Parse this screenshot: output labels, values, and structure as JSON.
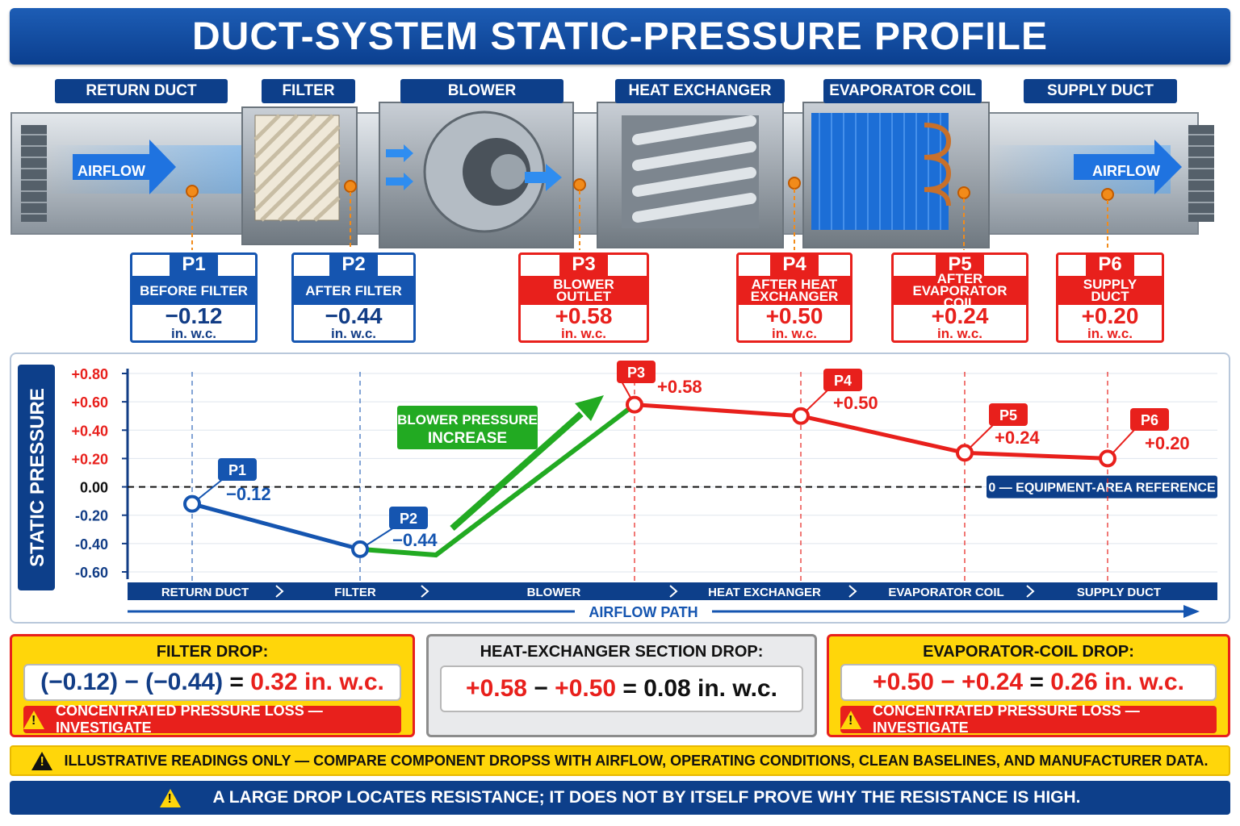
{
  "title": "DUCT-SYSTEM STATIC-PRESSURE PROFILE",
  "components": [
    "RETURN DUCT",
    "FILTER",
    "BLOWER",
    "HEAT EXCHANGER",
    "EVAPORATOR COIL",
    "SUPPLY DUCT"
  ],
  "airflow_labels": [
    "AIRFLOW",
    "AIRFLOW"
  ],
  "points": [
    {
      "id": "P1",
      "label": "BEFORE FILTER",
      "value": "−0.12",
      "unit": "in. w.c.",
      "style": "blue"
    },
    {
      "id": "P2",
      "label": "AFTER FILTER",
      "value": "−0.44",
      "unit": "in. w.c.",
      "style": "blue"
    },
    {
      "id": "P3",
      "label": "BLOWER OUTLET",
      "value": "+0.58",
      "unit": "in. w.c.",
      "style": "red"
    },
    {
      "id": "P4",
      "label": "AFTER HEAT EXCHANGER",
      "value": "+0.50",
      "unit": "in. w.c.",
      "style": "red"
    },
    {
      "id": "P5",
      "label": "AFTER EVAPORATOR COIL",
      "value": "+0.24",
      "unit": "in. w.c.",
      "style": "red"
    },
    {
      "id": "P6",
      "label": "SUPPLY DUCT",
      "value": "+0.20",
      "unit": "in. w.c.",
      "style": "red"
    }
  ],
  "chart_data": {
    "type": "line",
    "ylabel": "STATIC PRESSURE",
    "xlabel": "AIRFLOW PATH",
    "ylim": [
      -0.6,
      0.8
    ],
    "yticks": [
      "+0.80",
      "+0.60",
      "+0.40",
      "+0.20",
      "0.00",
      "-0.20",
      "-0.40",
      "-0.60"
    ],
    "categories": [
      "RETURN DUCT",
      "FILTER",
      "BLOWER",
      "HEAT EXCHANGER",
      "EVAPORATOR COIL",
      "SUPPLY DUCT"
    ],
    "series": [
      {
        "id": "P1",
        "label": "−0.12",
        "y": -0.12
      },
      {
        "id": "P2",
        "label": "−0.44",
        "y": -0.44
      },
      {
        "id": "P3",
        "label": "+0.58",
        "y": 0.58
      },
      {
        "id": "P4",
        "label": "+0.50",
        "y": 0.5
      },
      {
        "id": "P5",
        "label": "+0.24",
        "y": 0.24
      },
      {
        "id": "P6",
        "label": "+0.20",
        "y": 0.2
      }
    ],
    "reference_label": "0 — EQUIPMENT-AREA REFERENCE",
    "annotation": [
      "BLOWER PRESSURE",
      "INCREASE"
    ],
    "colors": {
      "negative": "#1555b0",
      "positive": "#e8201c",
      "blower": "#22aa22"
    }
  },
  "drops": [
    {
      "title": "FILTER DROP:",
      "a": "(−0.12)",
      "op": " − ",
      "b": "(−0.44)",
      "eq": " = ",
      "result": "0.32 in. w.c.",
      "warning": "CONCENTRATED PRESSURE LOSS — INVESTIGATE"
    },
    {
      "title": "HEAT-EXCHANGER SECTION DROP:",
      "a": "+0.58",
      "op": " − ",
      "b": "+0.50",
      "eq": " = ",
      "result": "0.08 in. w.c."
    },
    {
      "title": "EVAPORATOR-COIL DROP:",
      "a": "+0.50",
      "op": " − ",
      "b": "+0.24",
      "eq": " = ",
      "result": "0.26 in. w.c.",
      "warning": "CONCENTRATED PRESSURE LOSS — INVESTIGATE"
    }
  ],
  "note": "ILLUSTRATIVE READINGS ONLY — COMPARE COMPONENT DROPSS WITH AIRFLOW, OPERATING CONDITIONS, CLEAN BASELINES, AND MANUFACTURER DATA.",
  "footer": "A LARGE DROP LOCATES RESISTANCE; IT DOES NOT BY ITSELF PROVE WHY THE RESISTANCE IS HIGH.",
  "warn_symbol": "!"
}
